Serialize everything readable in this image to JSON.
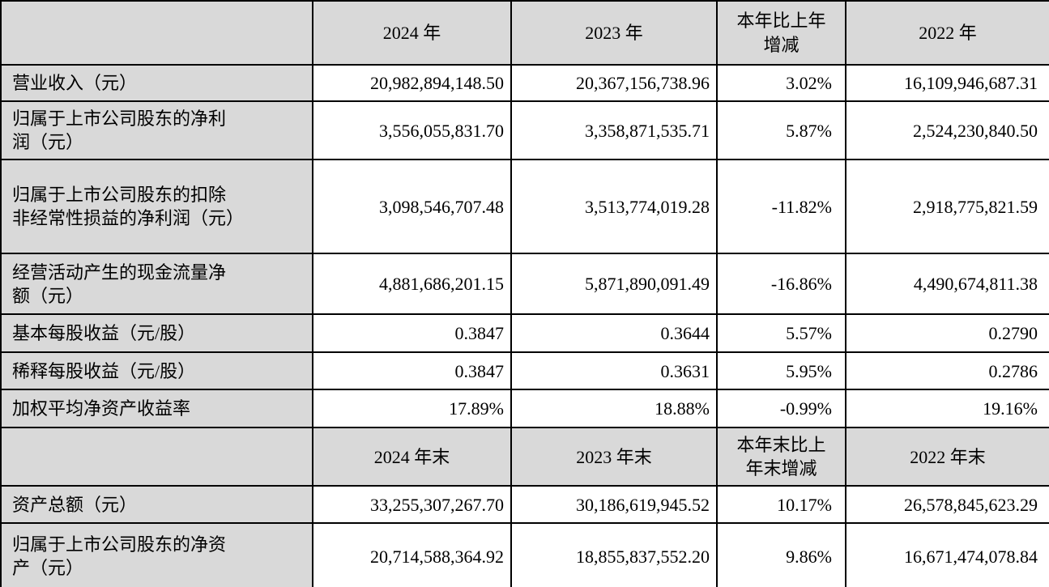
{
  "document": {
    "type": "financial-key-indicators-table",
    "colors": {
      "header_background": "#d9d9d9",
      "label_background": "#d9d9d9",
      "cell_background": "#ffffff",
      "border": "#000000"
    },
    "annual_header": {
      "corner": "",
      "y2024": "2024 年",
      "y2023": "2023 年",
      "change": "本年比上年增减",
      "y2022": "2022 年"
    },
    "annual_rows": [
      {
        "label": "营业收入（元）",
        "y2024": "20,982,894,148.50",
        "y2023": "20,367,156,738.96",
        "change": "3.02%",
        "y2022": "16,109,946,687.31"
      },
      {
        "label": "归属于上市公司股东的净利润（元）",
        "y2024": "3,556,055,831.70",
        "y2023": "3,358,871,535.71",
        "change": "5.87%",
        "y2022": "2,524,230,840.50"
      },
      {
        "label": "归属于上市公司股东的扣除非经常性损益的净利润（元）",
        "y2024": "3,098,546,707.48",
        "y2023": "3,513,774,019.28",
        "change": "-11.82%",
        "y2022": "2,918,775,821.59"
      },
      {
        "label": "经营活动产生的现金流量净额（元）",
        "y2024": "4,881,686,201.15",
        "y2023": "5,871,890,091.49",
        "change": "-16.86%",
        "y2022": "4,490,674,811.38"
      },
      {
        "label": "基本每股收益（元/股）",
        "y2024": "0.3847",
        "y2023": "0.3644",
        "change": "5.57%",
        "y2022": "0.2790"
      },
      {
        "label": "稀释每股收益（元/股）",
        "y2024": "0.3847",
        "y2023": "0.3631",
        "change": "5.95%",
        "y2022": "0.2786"
      },
      {
        "label": "加权平均净资产收益率",
        "y2024": "17.89%",
        "y2023": "18.88%",
        "change": "-0.99%",
        "y2022": "19.16%"
      }
    ],
    "eoy_header": {
      "corner": "",
      "y2024": "2024 年末",
      "y2023": "2023 年末",
      "change": "本年末比上年末增减",
      "y2022": "2022 年末"
    },
    "eoy_rows": [
      {
        "label": "资产总额（元）",
        "y2024": "33,255,307,267.70",
        "y2023": "30,186,619,945.52",
        "change": "10.17%",
        "y2022": "26,578,845,623.29"
      },
      {
        "label": "归属于上市公司股东的净资产（元）",
        "y2024": "20,714,588,364.92",
        "y2023": "18,855,837,552.20",
        "change": "9.86%",
        "y2022": "16,671,474,078.84"
      }
    ]
  }
}
